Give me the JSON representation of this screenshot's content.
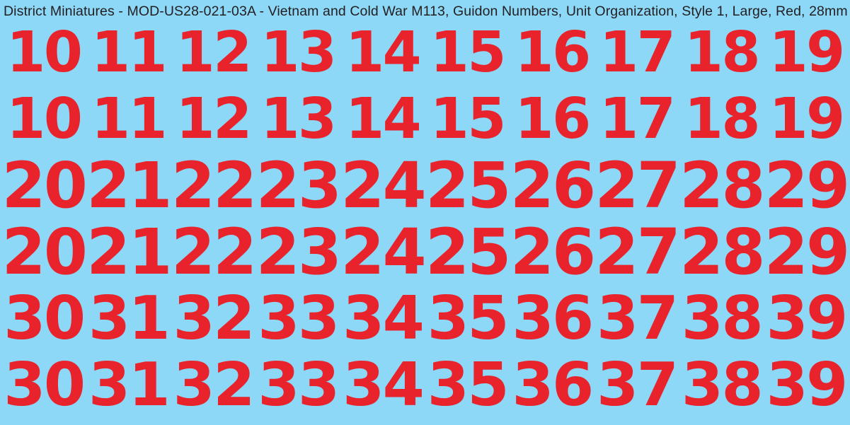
{
  "header": {
    "title": "District Miniatures - MOD-US28-021-03A - Vietnam and Cold War M113, Guidon Numbers, Unit Organization, Style 1, Large, Red, 28mm"
  },
  "colors": {
    "background": "#8DD7F7",
    "number_red": "#E8232B",
    "title_text": "#231F20"
  },
  "sheet": {
    "rows": [
      {
        "numbers": [
          "10",
          "11",
          "12",
          "13",
          "14",
          "15",
          "16",
          "17",
          "18",
          "19"
        ]
      },
      {
        "numbers": [
          "10",
          "11",
          "12",
          "13",
          "14",
          "15",
          "16",
          "17",
          "18",
          "19"
        ]
      },
      {
        "numbers": [
          "20",
          "21",
          "22",
          "23",
          "24",
          "25",
          "26",
          "27",
          "28",
          "29"
        ]
      },
      {
        "numbers": [
          "20",
          "21",
          "22",
          "23",
          "24",
          "25",
          "26",
          "27",
          "28",
          "29"
        ]
      },
      {
        "numbers": [
          "30",
          "31",
          "32",
          "33",
          "34",
          "35",
          "36",
          "37",
          "38",
          "39"
        ]
      },
      {
        "numbers": [
          "30",
          "31",
          "32",
          "33",
          "34",
          "35",
          "36",
          "37",
          "38",
          "39"
        ]
      }
    ]
  }
}
